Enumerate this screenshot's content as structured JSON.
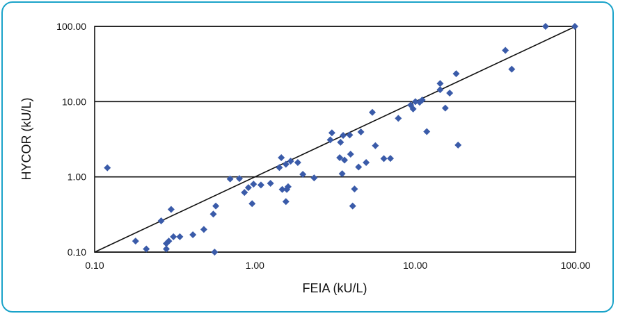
{
  "chart_data": {
    "type": "scatter",
    "xlabel": "FEIA (kU/L)",
    "ylabel": "HYCOR (kU/L)",
    "x_scale": "log",
    "y_scale": "log",
    "xlim": [
      0.1,
      100
    ],
    "ylim": [
      0.1,
      100
    ],
    "x_ticks": [
      0.1,
      1,
      10,
      100
    ],
    "y_ticks": [
      0.1,
      1,
      10,
      100
    ],
    "x_tick_labels": [
      "0.10",
      "1.00",
      "10.00",
      "100.00"
    ],
    "y_tick_labels": [
      "0.10",
      "1.00",
      "10.00",
      "100.00"
    ],
    "grid": "horizontal major lines",
    "reference_line": {
      "from": [
        0.1,
        0.1
      ],
      "to": [
        100,
        100
      ]
    },
    "colors": {
      "marker": "#3a5ba9",
      "line": "#111111",
      "frame": "#1aa3c9"
    },
    "points": [
      [
        0.12,
        1.32
      ],
      [
        0.18,
        0.14
      ],
      [
        0.21,
        0.11
      ],
      [
        0.26,
        0.26
      ],
      [
        0.28,
        0.13
      ],
      [
        0.28,
        0.11
      ],
      [
        0.29,
        0.14
      ],
      [
        0.3,
        0.37
      ],
      [
        0.31,
        0.16
      ],
      [
        0.34,
        0.16
      ],
      [
        0.41,
        0.17
      ],
      [
        0.48,
        0.2
      ],
      [
        0.55,
        0.32
      ],
      [
        0.57,
        0.41
      ],
      [
        0.56,
        0.1
      ],
      [
        0.7,
        0.94
      ],
      [
        0.8,
        0.95
      ],
      [
        0.86,
        0.62
      ],
      [
        0.91,
        0.72
      ],
      [
        0.96,
        0.44
      ],
      [
        0.98,
        0.8
      ],
      [
        1.09,
        0.78
      ],
      [
        1.25,
        0.82
      ],
      [
        1.42,
        1.33
      ],
      [
        1.46,
        1.8
      ],
      [
        1.48,
        0.68
      ],
      [
        1.56,
        1.47
      ],
      [
        1.56,
        0.47
      ],
      [
        1.58,
        0.68
      ],
      [
        1.61,
        0.74
      ],
      [
        1.67,
        1.62
      ],
      [
        1.85,
        1.55
      ],
      [
        1.99,
        1.08
      ],
      [
        2.34,
        0.97
      ],
      [
        2.95,
        3.1
      ],
      [
        3.02,
        3.85
      ],
      [
        3.38,
        1.8
      ],
      [
        3.42,
        2.88
      ],
      [
        3.5,
        1.1
      ],
      [
        3.55,
        3.55
      ],
      [
        3.62,
        1.67
      ],
      [
        3.9,
        3.6
      ],
      [
        3.95,
        2.0
      ],
      [
        4.07,
        0.41
      ],
      [
        4.18,
        0.69
      ],
      [
        4.43,
        1.35
      ],
      [
        4.58,
        3.95
      ],
      [
        4.94,
        1.55
      ],
      [
        5.4,
        7.2
      ],
      [
        5.64,
        2.6
      ],
      [
        6.37,
        1.75
      ],
      [
        7.0,
        1.76
      ],
      [
        7.84,
        6.0
      ],
      [
        9.37,
        9.0
      ],
      [
        9.7,
        8.0
      ],
      [
        10.02,
        10.0
      ],
      [
        10.65,
        9.8
      ],
      [
        11.05,
        10.5
      ],
      [
        11.8,
        4.0
      ],
      [
        14.3,
        17.4
      ],
      [
        14.3,
        14.4
      ],
      [
        15.4,
        8.2
      ],
      [
        16.4,
        13.0
      ],
      [
        18.0,
        23.5
      ],
      [
        18.5,
        2.65
      ],
      [
        36.5,
        48.0
      ],
      [
        40.0,
        27.0
      ],
      [
        65.0,
        100.0
      ],
      [
        99.0,
        100.0
      ]
    ]
  }
}
